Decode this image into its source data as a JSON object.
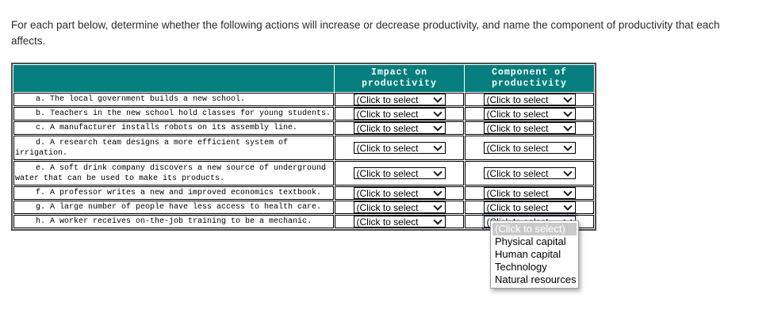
{
  "instructions": "For each part below, determine whether the following actions will increase or decrease productivity, and name the component of productivity that each affects.",
  "colors": {
    "header_bg": "#067e7e",
    "header_text": "#ffffff",
    "table_outer_border": "#4d4d4d",
    "cell_border": "#000000",
    "menu_highlight_bg": "#c9c9c9",
    "menu_highlight_text": "#ffffff"
  },
  "table": {
    "headers": {
      "impact": "Impact on productivity",
      "component": "Component of productivity"
    },
    "rows": [
      {
        "id": "a",
        "statement": "a. The local government builds a new school."
      },
      {
        "id": "b",
        "statement": "b. Teachers in the new school hold classes for young students."
      },
      {
        "id": "c",
        "statement": "c. A manufacturer installs robots on its assembly line."
      },
      {
        "id": "d",
        "statement": "d. A research team designs a more efficient system of irrigation."
      },
      {
        "id": "e",
        "statement": "e. A soft drink company discovers a new source of underground water that can be used to make its products."
      },
      {
        "id": "f",
        "statement": "f. A professor writes a new and improved economics textbook."
      },
      {
        "id": "g",
        "statement": "g. A large number of people have less access to health care."
      },
      {
        "id": "h",
        "statement": "h. A worker receives on-the-job training to be a mechanic."
      }
    ]
  },
  "dropdown": {
    "select_label": "(Click to select",
    "options": [
      "(Click to select)",
      "Physical capital",
      "Human capital",
      "Technology",
      "Natural resources"
    ],
    "selected_option": "(Click to select)"
  }
}
